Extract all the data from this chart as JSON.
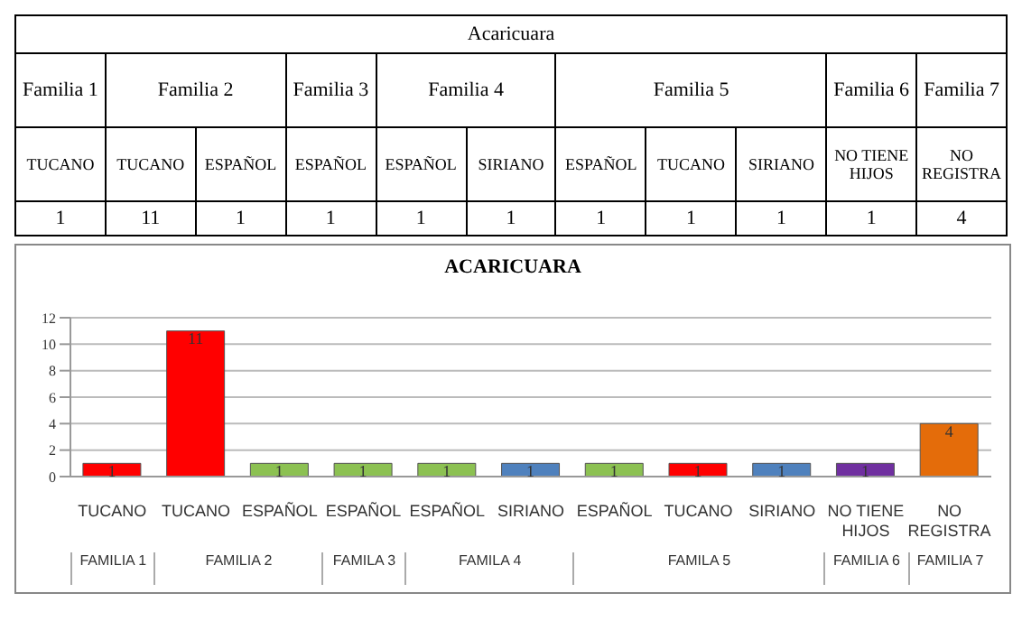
{
  "chart_data": [
    {
      "type": "other",
      "title": "Acaricuara",
      "categories": [
        "TUCANO",
        "TUCANO",
        "ESPAÑOL",
        "ESPAÑOL",
        "ESPAÑOL",
        "SIRIANO",
        "ESPAÑOL",
        "TUCANO",
        "SIRIANO",
        "NO TIENE HIJOS",
        "NO REGISTRA"
      ],
      "values": [
        1,
        11,
        1,
        1,
        1,
        1,
        1,
        1,
        1,
        1,
        4
      ],
      "data_labels": true,
      "annotations": [
        "Familia 1",
        "Familia 2",
        "Familia 3",
        "Familia 4",
        "Familia 5",
        "Familia 6",
        "Familia 7"
      ]
    },
    {
      "type": "bar",
      "title": "ACARICUARA",
      "categories": [
        "TUCANO",
        "TUCANO",
        "ESPAÑOL",
        "ESPAÑOL",
        "ESPAÑOL",
        "SIRIANO",
        "ESPAÑOL",
        "TUCANO",
        "SIRIANO",
        "NO TIENE HIJOS",
        "NO REGISTRA"
      ],
      "values": [
        1,
        11,
        1,
        1,
        1,
        1,
        1,
        1,
        1,
        1,
        4
      ],
      "colors": [
        "#ff0000",
        "#ff0000",
        "#8cc152",
        "#8cc152",
        "#8cc152",
        "#4f81bd",
        "#8cc152",
        "#ff0000",
        "#4f81bd",
        "#7030a0",
        "#e46c0a"
      ],
      "ylim": [
        0,
        12
      ],
      "yticks": [
        0,
        2,
        4,
        6,
        8,
        10,
        12
      ],
      "grid": "y",
      "data_labels": true,
      "annotations": [
        "FAMILIA 1",
        "FAMILIA 2",
        "FAMILA 3",
        "FAMILA 4",
        "FAMILA 5",
        "FAMILIA 6",
        "FAMILIA 7"
      ]
    }
  ]
}
